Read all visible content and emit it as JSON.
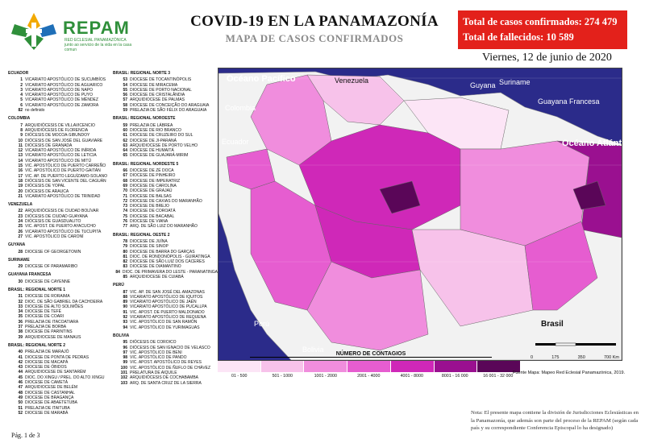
{
  "header": {
    "org_name": "REPAM",
    "org_fullname": "RED ECLESIAL PANAMAZÓNICA",
    "org_tagline": "junto ao servicio de la vida en la casa comun",
    "title": "COVID-19 EN LA PANAMAZONÍA",
    "subtitle": "MAPA DE CASOS CONFIRMADOS",
    "total_cases_label": "Total de casos confirmados: 274 479",
    "total_deaths_label": "Total de fallecidos: 10 589",
    "date": "Viernes, 12 de junio de 2020"
  },
  "colors": {
    "ocean": "#2b2b8a",
    "land": "#f2f2f2",
    "stats_box": "#e3211b",
    "logo_green": "#2f8f3a",
    "bins": [
      "#fce5f6",
      "#f7c2ea",
      "#f08ddd",
      "#e65dd0",
      "#cf28b8",
      "#9a1090",
      "#5a0658"
    ]
  },
  "legend_left": [
    {
      "heading": "ECUADOR",
      "items": [
        {
          "num": "1",
          "name": "VICARIATO APOSTÓLICO DE SUCUMBÍOS"
        },
        {
          "num": "2",
          "name": "VICARIATO APOSTÓLICO DE AGUARICO"
        },
        {
          "num": "3",
          "name": "VICARIATO APOSTÓLICO DE NAPO"
        },
        {
          "num": "4",
          "name": "VICARIATO APOSTÓLICO DE PUYO"
        },
        {
          "num": "5",
          "name": "VICARIATO APOSTÓLICO DE MÉNDEZ"
        },
        {
          "num": "6",
          "name": "VICARIATO APOSTÓLICO DE ZAMORA"
        },
        {
          "num": "",
          "name": ""
        },
        {
          "num": "82",
          "name": "no definido"
        }
      ]
    },
    {
      "heading": "COLOMBIA",
      "items": [
        {
          "num": "7",
          "name": "ARQUIDIÓCESIS DE VILLAVICENCIO"
        },
        {
          "num": "8",
          "name": "ARQUIDIÓCESIS DE FLORENCIA"
        },
        {
          "num": "9",
          "name": "DIÓCESIS DE MOCOA-SIBUNDOY"
        },
        {
          "num": "10",
          "name": "DIÓCESIS DE SAN JOSÉ DEL GUAVIARE"
        },
        {
          "num": "11",
          "name": "DIÓCESIS DE GRANADA"
        },
        {
          "num": "12",
          "name": "VICARIATO APOSTÓLICO DE INÍRIDA"
        },
        {
          "num": "13",
          "name": "VICARIATO APOSTÓLICO DE LETICIA"
        },
        {
          "num": "14",
          "name": "VICARIATO APOSTÓLICO DE MITÚ"
        },
        {
          "num": "15",
          "name": "VIC. APOSTÓLICO DE PUERTO CARREÑO"
        },
        {
          "num": "16",
          "name": "VIC. APOSTÓLICO DE PUERTO GAITÁN"
        },
        {
          "num": "17",
          "name": "VIC. AP. DE PUERTO LEGUÍZAMO-SOLANO"
        },
        {
          "num": "18",
          "name": "DIÓCESIS DE SAN VICENTE DEL CAGUÁN"
        },
        {
          "num": "19",
          "name": "DIÓCESIS DE YOPAL"
        },
        {
          "num": "20",
          "name": "DIÓCESIS DE ARAUCA"
        },
        {
          "num": "21",
          "name": "VICARIATO APOSTÓLICO DE TRINIDAD"
        }
      ]
    },
    {
      "heading": "VENEZUELA",
      "items": [
        {
          "num": "22",
          "name": "ARQUIDIÓCESIS DE CIUDAD BOLÍVAR"
        },
        {
          "num": "23",
          "name": "DIÓCESIS DE CIUDAD GUAYANA"
        },
        {
          "num": "24",
          "name": "DIÓCESIS DE GUASDUALITO"
        },
        {
          "num": "25",
          "name": "VIC. APOST. DE PUERTO AYACUCHO"
        },
        {
          "num": "26",
          "name": "VICARIATO APOSTÓLICO DE TUCUPITA"
        },
        {
          "num": "27",
          "name": "VIC. APOSTÓLICO DE CARONÍ"
        }
      ]
    },
    {
      "heading": "GUYANA",
      "items": [
        {
          "num": "28",
          "name": "DIOCESE OF GEORGETOWN"
        }
      ]
    },
    {
      "heading": "SURINAME",
      "items": [
        {
          "num": "29",
          "name": "DIOCESE OF PARAMARIBO"
        }
      ]
    },
    {
      "heading": "GUAYANA FRANCESA",
      "items": [
        {
          "num": "30",
          "name": "DIOCESE DE CAYENNE"
        }
      ]
    },
    {
      "heading": "BRASIL: REGIONAL NORTE 1",
      "items": [
        {
          "num": "31",
          "name": "DIOCESE DE RORAIMA"
        },
        {
          "num": "32",
          "name": "DIOC. DE SÃO GABRIEL DA CACHOEIRA"
        },
        {
          "num": "33",
          "name": "DIOCESE DE ALTO SOLIMÕES"
        },
        {
          "num": "34",
          "name": "DIOCESE DE TEFÉ"
        },
        {
          "num": "35",
          "name": "DIOCESE DE COARI"
        },
        {
          "num": "36",
          "name": "PRELAZIA DE ITACOATIARA"
        },
        {
          "num": "37",
          "name": "PRELAZIA DE BORBA"
        },
        {
          "num": "38",
          "name": "DIOCESE DE PARINTINS"
        },
        {
          "num": "39",
          "name": "ARQUIDIOCESE DE MANAUS"
        }
      ]
    },
    {
      "heading": "BRASIL: REGIONAL NORTE 2",
      "items": [
        {
          "num": "40",
          "name": "PRELAZIA DE MARAJÓ"
        },
        {
          "num": "41",
          "name": "DIOCESE DE PONTA DE PEDRAS"
        },
        {
          "num": "42",
          "name": "DIOCESE DE MACAPÁ"
        },
        {
          "num": "43",
          "name": "DIOCESE DE ÓBIDOS"
        },
        {
          "num": "44",
          "name": "ARQUIDIOCESE DE SANTARÉM"
        },
        {
          "num": "45",
          "name": "DIOC. DO XINGU / PREL. DO ALTO XINGU"
        },
        {
          "num": "46",
          "name": "DIOCESE DE CAMETÁ"
        },
        {
          "num": "47",
          "name": "ARQUIDIOCESE DE BELÉM"
        },
        {
          "num": "48",
          "name": "DIOCESE DE CASTANHAL"
        },
        {
          "num": "49",
          "name": "DIOCESE DE BRAGANÇA"
        },
        {
          "num": "50",
          "name": "DIOCESE DE ABAETETUBA"
        },
        {
          "num": "51",
          "name": "PRELAZIA DE ITAITUBA"
        },
        {
          "num": "52",
          "name": "DIOCESE DE MARABÁ"
        }
      ]
    }
  ],
  "legend_right": [
    {
      "heading": "BRASIL: REGIONAL NORTE 3",
      "items": [
        {
          "num": "53",
          "name": "DIOCESE DE TOCANTINÓPOLIS"
        },
        {
          "num": "54",
          "name": "DIOCESE DE MIRACEMA"
        },
        {
          "num": "55",
          "name": "DIOCESE DE PORTO NACIONAL"
        },
        {
          "num": "56",
          "name": "DIOCESE DE CRISTALÂNDIA"
        },
        {
          "num": "57",
          "name": "ARQUIDIOCESE DE PALMAS"
        },
        {
          "num": "58",
          "name": "DIOCESE DE CONCEIÇÃO DO ARAGUAIA"
        },
        {
          "num": "59",
          "name": "PRELAZIA DE SÃO FÉLIX DO ARAGUAIA"
        }
      ]
    },
    {
      "heading": "BRASIL: REGIONAL NOROESTE",
      "items": [
        {
          "num": "59",
          "name": "PRELAZIA DE LÁBREA"
        },
        {
          "num": "60",
          "name": "DIOCESE DE RIO BRANCO"
        },
        {
          "num": "61",
          "name": "DIOCESE DE CRUZEIRO DO SUL"
        },
        {
          "num": "62",
          "name": "DIOCESE DE JI-PARANÁ"
        },
        {
          "num": "63",
          "name": "ARQUIDIOCESE DE PORTO VELHO"
        },
        {
          "num": "64",
          "name": "DIOCESE DE HUMAITÁ"
        },
        {
          "num": "65",
          "name": "DIOCESE DE GUAJARÁ-MIRIM"
        }
      ]
    },
    {
      "heading": "BRASIL: REGIONAL NORDESTE 5",
      "items": [
        {
          "num": "66",
          "name": "DIOCESE DE ZÉ DOCA"
        },
        {
          "num": "67",
          "name": "DIOCESE DE PINHEIRO"
        },
        {
          "num": "68",
          "name": "DIOCESE DE IMPERATRIZ"
        },
        {
          "num": "69",
          "name": "DIOCESE DE CAROLINA"
        },
        {
          "num": "70",
          "name": "DIOCESE DE GRAJAÚ"
        },
        {
          "num": "71",
          "name": "DIOCESE DE BALSAS"
        },
        {
          "num": "72",
          "name": "DIOCESE DE CAXIAS DO MARANHÃO"
        },
        {
          "num": "73",
          "name": "DIOCESE DE BREJO"
        },
        {
          "num": "74",
          "name": "DIOCESE DE COROATÁ"
        },
        {
          "num": "75",
          "name": "DIOCESE DE BACABAL"
        },
        {
          "num": "76",
          "name": "DIOCESE DE VIANA"
        },
        {
          "num": "77",
          "name": "ARQ. DE SÃO LUIZ DO MARANHÃO"
        }
      ]
    },
    {
      "heading": "BRASIL: REGIONAL OESTE 2",
      "items": [
        {
          "num": "78",
          "name": "DIOCESE DE JUÍNA"
        },
        {
          "num": "79",
          "name": "DIOCESE DE SINOP"
        },
        {
          "num": "80",
          "name": "DIOCESE DE BARRA DO GARÇAS"
        },
        {
          "num": "81",
          "name": "DIOC. DE RONDONÓPOLIS - GUIRATINGA"
        },
        {
          "num": "82",
          "name": "DIOCESE DE SÃO LUIZ DOS CÁCERES"
        },
        {
          "num": "83",
          "name": "DIOCESE DE DIAMANTINO"
        },
        {
          "num": "84",
          "name": "DIOC. DE PRIMAVERA DO LESTE - PARANATINGA"
        },
        {
          "num": "85",
          "name": "ARQUIDIOCESE DE CUIABÁ"
        }
      ]
    },
    {
      "heading": "PERÚ",
      "items": [
        {
          "num": "87",
          "name": "VIC. AP. DE SAN JOSÉ DEL AMAZONAS"
        },
        {
          "num": "88",
          "name": "VICARIATO APOSTÓLICO DE IQUITOS"
        },
        {
          "num": "89",
          "name": "VICARIATO APOSTÓLICO DE JAÉN"
        },
        {
          "num": "90",
          "name": "VICARIATO APOSTÓLICO DE PUCALLPA"
        },
        {
          "num": "91",
          "name": "VIC. APOST. DE PUERTO MALDONADO"
        },
        {
          "num": "92",
          "name": "VICARIATO APOSTÓLICO DE REQUENA"
        },
        {
          "num": "93",
          "name": "VIC. APOSTÓLICO DE SAN RAMÓN"
        },
        {
          "num": "94",
          "name": "VIC. APOSTÓLICO DE YURIMAGUAS"
        }
      ]
    },
    {
      "heading": "BOLIVIA",
      "items": [
        {
          "num": "95",
          "name": "DIÓCESIS DE COROICO"
        },
        {
          "num": "96",
          "name": "DIÓCESIS DE SAN IGNACIO DE VELASCO"
        },
        {
          "num": "97",
          "name": "VIC. APOSTÓLICO DE BENI"
        },
        {
          "num": "98",
          "name": "VIC. APOSTÓLICO DE PANDO"
        },
        {
          "num": "99",
          "name": "VIC. APOST. APOSTÓLICO DE REYES"
        },
        {
          "num": "100",
          "name": "VIC. APOSTÓLICO DE ÑUFLO DE CHÁVEZ"
        },
        {
          "num": "101",
          "name": "PRELATURA DE AIQUILE"
        },
        {
          "num": "102",
          "name": "ARQUIDIÓCESIS DE COCHABAMBA"
        },
        {
          "num": "103",
          "name": "ARQ. DE SANTA CRUZ DE LA SIERRA"
        }
      ]
    }
  ],
  "map": {
    "labels": {
      "pacific": "Océano Pacífico",
      "atlantic": "Océano Atlántico",
      "venezuela": "Venezuela",
      "colombia": "Colombia",
      "ecuador": "Ecuador",
      "guyana": "Guyana",
      "suriname": "Suriname",
      "french_guiana": "Guayana Francesa",
      "peru": "Perú",
      "bolivia": "Bolivia",
      "brasil": "Brasil"
    },
    "lat_labels": [
      "10°0'0\"N",
      "0°0'0\"",
      "10°0'0\"S"
    ],
    "lon_labels": [
      "80°0'0\"W",
      "70°0'0\"W",
      "60°0'0\"W",
      "50°0'0\"W",
      "40°0'0\"W"
    ],
    "scale_ticks": [
      "0",
      "175",
      "350",
      "700 Km"
    ]
  },
  "contagios": {
    "title": "NÚMERO DE CONTAGIOS",
    "bins": [
      "01 - 500",
      "501 - 1000",
      "1001 - 2000",
      "2001 - 4000",
      "4001 - 8000",
      "8001 - 16 000",
      "16 001 - 32 000"
    ]
  },
  "source": "Fuente Mapa: Mapeo Red Eclesial Panamazónica, 2019.",
  "note": "Nota: El presente mapa contiene la división de Jurisdicciones Eclesiásticas en la Panamazonía, que además son parte del proceso de la REPAM (según cada país y su correspondiente Conferencia Episcopal lo ha designado)",
  "page": "Pág. 1 de 3"
}
